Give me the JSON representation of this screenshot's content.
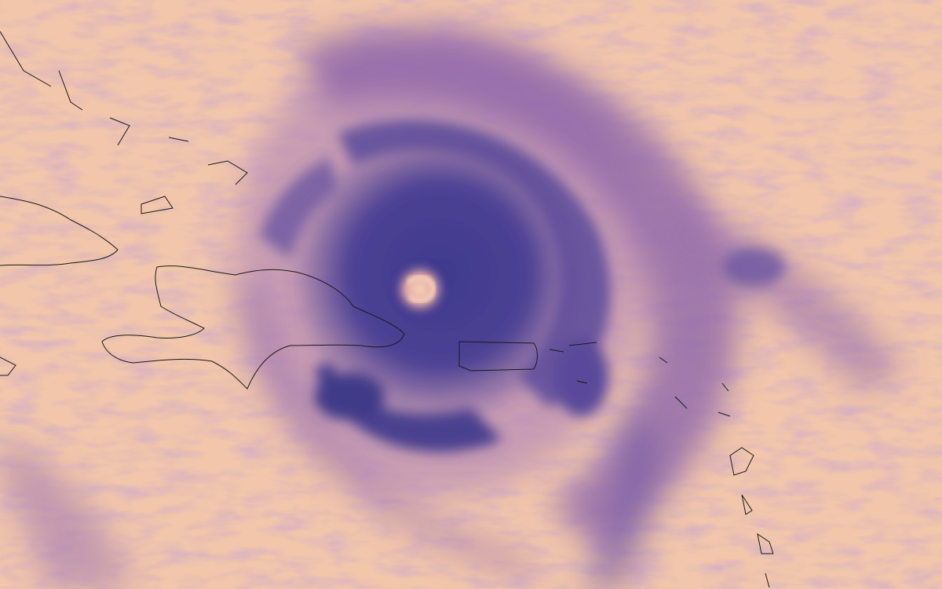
{
  "image": {
    "subject": "hurricane-satellite-view",
    "colors": {
      "clear_sky": "#f1c6ab",
      "high_cloud_light": "#d9a3b3",
      "cloud_mid": "#9a6aa8",
      "cloud_deep": "#4b3f8f",
      "eye": "#f3c9ad",
      "coastline": "#1a1a1a"
    }
  }
}
